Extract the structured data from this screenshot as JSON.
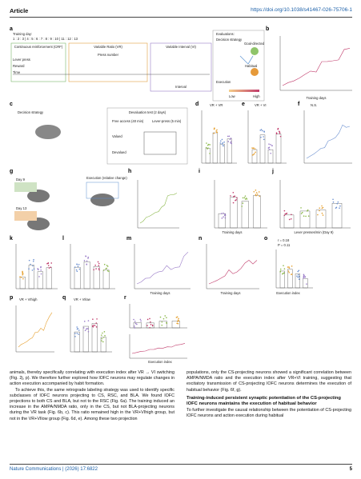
{
  "header": {
    "journal_label": "Article",
    "doi": "https://doi.org/10.1038/s41467-026-75706-1"
  },
  "figure": {
    "panels": [
      "a",
      "b",
      "c",
      "d",
      "e",
      "f",
      "g",
      "h",
      "i",
      "j",
      "k",
      "l",
      "m",
      "n",
      "o",
      "p",
      "q",
      "r"
    ],
    "labels": [
      "Training day:",
      "1 : 2 : 3 | 4 : 5 : 6 : 7 : 8 : 9 : 10 | 11 : 12 : 13",
      "Continuous reinforcement (CRF)",
      "Variable Ratio (VR)",
      "Variable Interval (VI)",
      "Lever press",
      "Reward",
      "Time",
      "Press number",
      "Interval",
      "Evaluations:",
      "Decision strategy",
      "Execution",
      "Goal-directed",
      "Habitual",
      "Low",
      "High",
      "Training days",
      "Decision strategy",
      "Devaluation test (2 days)",
      "Free access (40 min)",
      "Lever-press (5 min)",
      "Valued",
      "Devalued",
      "VR + VR",
      "VR + VI",
      "N.S.",
      "Day 9",
      "Day 13",
      "Execution (relative change)",
      "Training days",
      "Lever presses/min (Day 9)",
      "Training days",
      "Training days",
      "Execution index",
      "r = 0.18",
      "P = 0.11",
      "VR + VIhigh",
      "VR + VIlow",
      "Execution index"
    ]
  },
  "body": {
    "left": [
      "animals, thereby specifically correlating with execution index after VR → VI switching (Fig. 2j, p). We therefore further explored how lOFC neurons may regulate changes in action execution accompanied by habit formation.",
      "To achieve this, the same retrograde labeling strategy was used to identify specific subclasses of lOFC neurons projecting to CS, RSC, and BLA. We found lOFC projections to both CS and BLA, but not to the RSC (Fig. 6a). The training induced an increase in the AMPA/NMDA ratio, only in the CS, but not BLA-projecting neurons during the VR task (Fig. 6b, c). This ratio remained high in the VR+VIhigh group, but not in the VR+VIlow group (Fig. 6d, e). Among these two projection"
    ],
    "right": {
      "paragraph": "populations, only the CS-projecting neurons showed a significant correlation between AMPA/NMDA ratio and the execution index after VR+VI training, suggesting that excitatory transmission of CS-projecting lOFC neurons determines the execution of habitual behavior (Fig. 6f, g).",
      "heading": "Training-induced persistent synaptic potentiation of the CS-projecting lOFC neurons maintains the execution of habitual behavior",
      "paragraph2": "To further investigate the causal relationship between the potentiation of CS-projecting lOFC neurons and action execution during habitual"
    }
  },
  "footer": {
    "journal": "Nature Communications | (2026) 17:6822",
    "page": "5"
  }
}
